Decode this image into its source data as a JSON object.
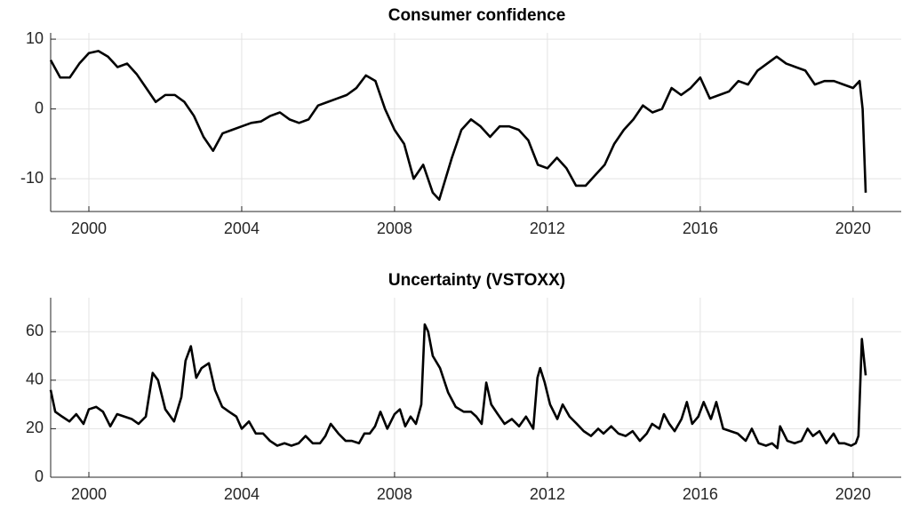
{
  "chart_data": [
    {
      "type": "line",
      "title": "Consumer confidence",
      "color": "#000000",
      "grid": true,
      "xlim": [
        1999,
        2021.26
      ],
      "xticks": [
        2000,
        2004,
        2008,
        2012,
        2016,
        2020
      ],
      "ylim": [
        -14.7,
        10.9
      ],
      "yticks": [
        -10,
        0,
        10
      ],
      "x": [
        1999.0,
        1999.25,
        1999.5,
        1999.75,
        2000.0,
        2000.25,
        2000.5,
        2000.75,
        2001.0,
        2001.25,
        2001.5,
        2001.75,
        2002.0,
        2002.25,
        2002.5,
        2002.75,
        2003.0,
        2003.25,
        2003.5,
        2003.75,
        2004.0,
        2004.25,
        2004.5,
        2004.75,
        2005.0,
        2005.25,
        2005.5,
        2005.75,
        2006.0,
        2006.25,
        2006.5,
        2006.75,
        2007.0,
        2007.25,
        2007.5,
        2007.75,
        2008.0,
        2008.25,
        2008.5,
        2008.75,
        2009.0,
        2009.17,
        2009.5,
        2009.75,
        2010.0,
        2010.25,
        2010.5,
        2010.75,
        2011.0,
        2011.25,
        2011.5,
        2011.75,
        2012.0,
        2012.25,
        2012.5,
        2012.75,
        2013.0,
        2013.25,
        2013.5,
        2013.75,
        2014.0,
        2014.25,
        2014.5,
        2014.75,
        2015.0,
        2015.25,
        2015.5,
        2015.75,
        2016.0,
        2016.25,
        2016.5,
        2016.75,
        2017.0,
        2017.25,
        2017.5,
        2017.75,
        2018.0,
        2018.25,
        2018.5,
        2018.75,
        2019.0,
        2019.25,
        2019.5,
        2019.75,
        2020.0,
        2020.17,
        2020.25,
        2020.33
      ],
      "values": [
        7,
        4.5,
        4.5,
        6.5,
        8,
        8.3,
        7.5,
        6,
        6.5,
        5,
        3,
        1,
        2,
        2,
        1,
        -1,
        -4,
        -6,
        -3.5,
        -3,
        -2.5,
        -2,
        -1.8,
        -1,
        -0.5,
        -1.5,
        -2,
        -1.5,
        0.5,
        1,
        1.5,
        2,
        3,
        4.8,
        4,
        0,
        -3,
        -5,
        -10,
        -8,
        -12,
        -13,
        -7,
        -3,
        -1.5,
        -2.5,
        -4,
        -2.5,
        -2.5,
        -3,
        -4.5,
        -8,
        -8.5,
        -7,
        -8.5,
        -11,
        -11,
        -9.5,
        -8,
        -5,
        -3,
        -1.5,
        0.5,
        -0.5,
        0,
        3,
        2,
        3,
        4.5,
        1.5,
        2,
        2.5,
        4,
        3.5,
        5.5,
        6.5,
        7.5,
        6.5,
        6,
        5.5,
        3.5,
        4,
        4,
        3.5,
        3,
        4,
        0,
        -12
      ]
    },
    {
      "type": "line",
      "title": "Uncertainty (VSTOXX)",
      "color": "#000000",
      "grid": true,
      "xlim": [
        1999,
        2021.26
      ],
      "xticks": [
        2000,
        2004,
        2008,
        2012,
        2016,
        2020
      ],
      "ylim": [
        0,
        74
      ],
      "yticks": [
        0,
        20,
        40,
        60
      ],
      "x": [
        1999.0,
        1999.12,
        1999.3,
        1999.49,
        1999.67,
        1999.86,
        2000.0,
        2000.19,
        2000.37,
        2000.56,
        2000.74,
        2000.93,
        2001.12,
        2001.3,
        2001.49,
        2001.67,
        2001.81,
        2002.0,
        2002.23,
        2002.42,
        2002.53,
        2002.67,
        2002.81,
        2002.95,
        2003.14,
        2003.3,
        2003.49,
        2003.67,
        2003.86,
        2004.0,
        2004.19,
        2004.37,
        2004.56,
        2004.74,
        2004.93,
        2005.12,
        2005.3,
        2005.49,
        2005.67,
        2005.86,
        2006.05,
        2006.19,
        2006.33,
        2006.53,
        2006.72,
        2006.88,
        2007.07,
        2007.21,
        2007.35,
        2007.49,
        2007.63,
        2007.81,
        2008.0,
        2008.14,
        2008.28,
        2008.42,
        2008.56,
        2008.7,
        2008.79,
        2008.88,
        2009.0,
        2009.19,
        2009.4,
        2009.6,
        2009.81,
        2010.0,
        2010.14,
        2010.28,
        2010.4,
        2010.53,
        2010.7,
        2010.88,
        2011.07,
        2011.26,
        2011.44,
        2011.63,
        2011.74,
        2011.81,
        2011.93,
        2012.07,
        2012.26,
        2012.4,
        2012.58,
        2012.77,
        2012.95,
        2013.14,
        2013.33,
        2013.47,
        2013.67,
        2013.86,
        2014.05,
        2014.23,
        2014.42,
        2014.6,
        2014.74,
        2014.93,
        2015.05,
        2015.19,
        2015.33,
        2015.51,
        2015.65,
        2015.79,
        2015.95,
        2016.09,
        2016.28,
        2016.42,
        2016.6,
        2016.79,
        2016.98,
        2017.19,
        2017.35,
        2017.53,
        2017.72,
        2017.88,
        2018.02,
        2018.09,
        2018.28,
        2018.47,
        2018.65,
        2018.81,
        2018.95,
        2019.12,
        2019.3,
        2019.49,
        2019.63,
        2019.77,
        2019.95,
        2020.07,
        2020.14,
        2020.23,
        2020.33
      ],
      "values": [
        36,
        27,
        25,
        23,
        26,
        22,
        28,
        29,
        27,
        21,
        26,
        25,
        24,
        22,
        25,
        43,
        40,
        28,
        23,
        33,
        48,
        54,
        41,
        45,
        47,
        36,
        29,
        27,
        25,
        20,
        23,
        18,
        18,
        15,
        13,
        14,
        13,
        14,
        17,
        14,
        14,
        17,
        22,
        18,
        15,
        15,
        14,
        18,
        18,
        21,
        27,
        20,
        26,
        28,
        21,
        25,
        22,
        30,
        63,
        60,
        50,
        45,
        35,
        29,
        27,
        27,
        25,
        22,
        39,
        30,
        26,
        22,
        24,
        21,
        25,
        20,
        41,
        45,
        39,
        30,
        24,
        30,
        25,
        22,
        19,
        17,
        20,
        18,
        21,
        18,
        17,
        19,
        15,
        18,
        22,
        20,
        26,
        22,
        19,
        24,
        31,
        22,
        25,
        31,
        24,
        31,
        20,
        19,
        18,
        15,
        20,
        14,
        13,
        14,
        12,
        21,
        15,
        14,
        15,
        20,
        17,
        19,
        14,
        18,
        14,
        14,
        13,
        14,
        17,
        57,
        42
      ]
    }
  ]
}
